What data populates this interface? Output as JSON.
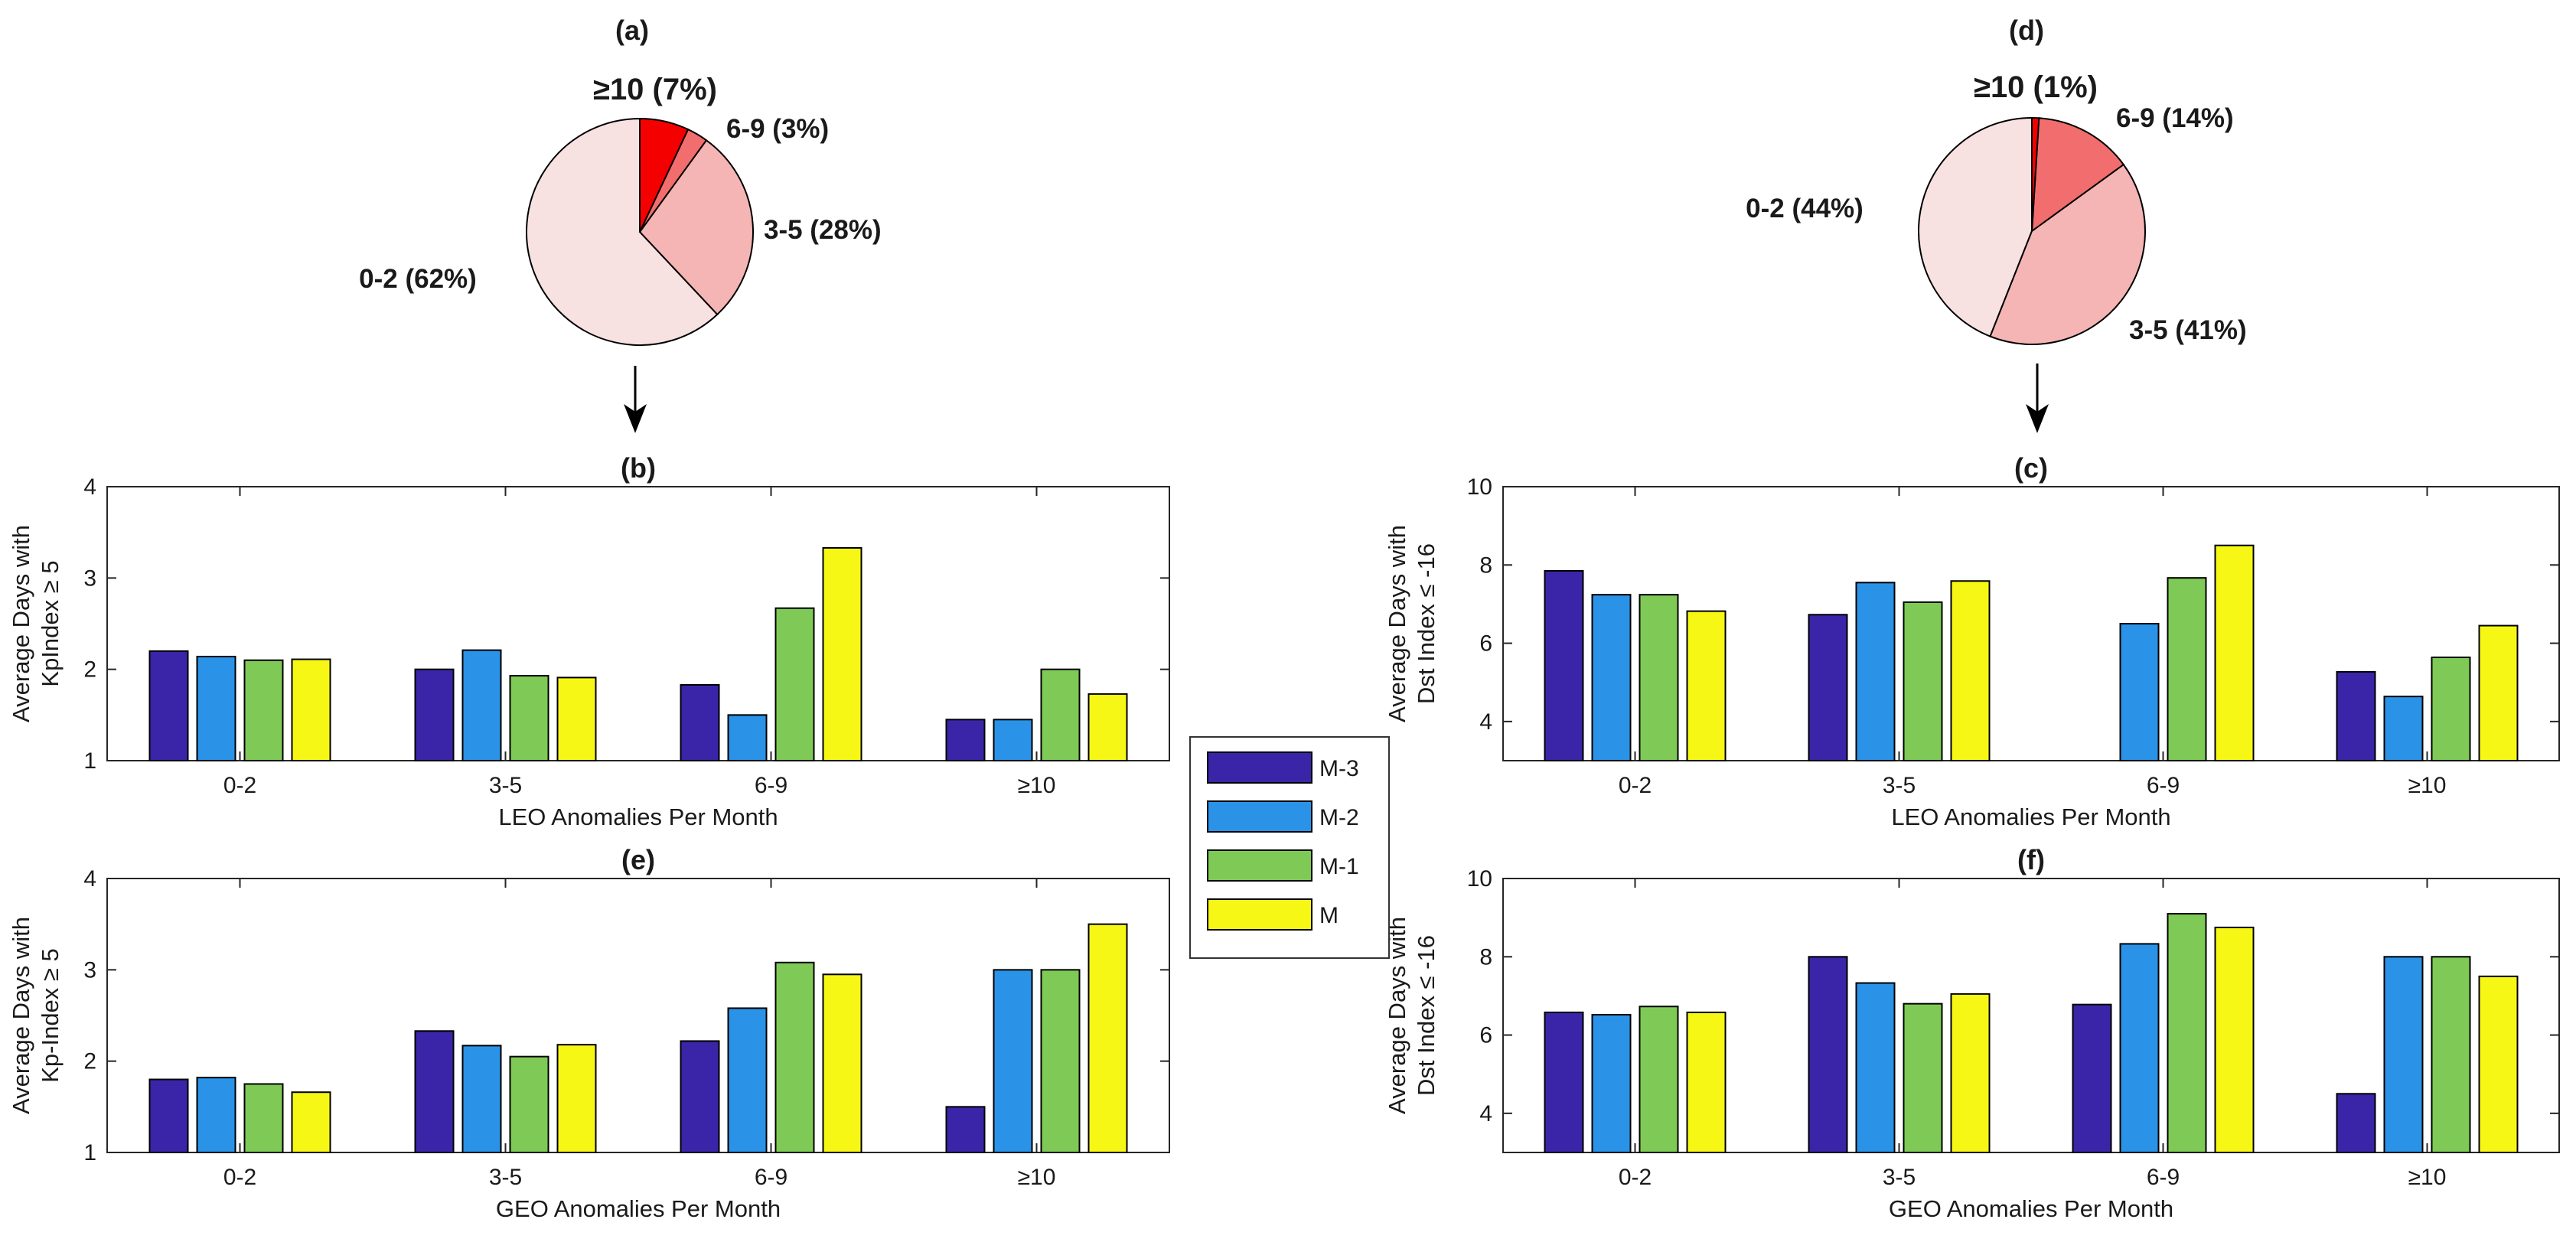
{
  "colors": {
    "M-3": "#3a25a8",
    "M-2": "#2a93e8",
    "M-1": "#7fca57",
    "M": "#f7f716",
    "pie": [
      "#f7e1e1",
      "#f5b5b5",
      "#f26d6d",
      "#f50000"
    ]
  },
  "legend": [
    "M-3",
    "M-2",
    "M-1",
    "M"
  ],
  "chart_data": [
    {
      "id": "a",
      "type": "pie",
      "title": "(a)",
      "labels": [
        "0-2 (62%)",
        "3-5 (28%)",
        "6-9 (3%)",
        "≥10 (7%)"
      ],
      "values": [
        62,
        28,
        3,
        7
      ]
    },
    {
      "id": "d",
      "type": "pie",
      "title": "(d)",
      "labels": [
        "0-2 (44%)",
        "3-5 (41%)",
        "6-9 (14%)",
        "≥10 (1%)"
      ],
      "values": [
        44,
        41,
        14,
        1
      ]
    },
    {
      "id": "b",
      "type": "bar",
      "title": "(b)",
      "categories": [
        "0-2",
        "3-5",
        "6-9",
        "≥10"
      ],
      "xlabel": "LEO Anomalies Per Month",
      "ylabel": [
        "Average Days with",
        "KpIndex ≥ 5"
      ],
      "ylim": [
        1,
        4
      ],
      "yticks": [
        1,
        2,
        3,
        4
      ],
      "series": [
        {
          "name": "M-3",
          "values": [
            2.2,
            2.0,
            1.83,
            1.45
          ]
        },
        {
          "name": "M-2",
          "values": [
            2.14,
            2.21,
            1.5,
            1.45
          ]
        },
        {
          "name": "M-1",
          "values": [
            2.1,
            1.93,
            2.67,
            2.0
          ]
        },
        {
          "name": "M",
          "values": [
            2.11,
            1.91,
            3.33,
            1.73
          ]
        }
      ]
    },
    {
      "id": "c",
      "type": "bar",
      "title": "(c)",
      "categories": [
        "0-2",
        "3-5",
        "6-9",
        "≥10"
      ],
      "xlabel": "LEO Anomalies Per Month",
      "ylabel": [
        "Average Days with",
        "Dst Index ≤ -16"
      ],
      "ylim": [
        3,
        10
      ],
      "yticks": [
        4,
        6,
        8,
        10
      ],
      "series": [
        {
          "name": "M-3",
          "values": [
            7.85,
            6.73,
            null,
            5.27
          ]
        },
        {
          "name": "M-2",
          "values": [
            7.24,
            7.55,
            6.5,
            4.64
          ]
        },
        {
          "name": "M-1",
          "values": [
            7.24,
            7.05,
            7.67,
            5.64
          ]
        },
        {
          "name": "M",
          "values": [
            6.82,
            7.59,
            8.5,
            6.45
          ]
        }
      ]
    },
    {
      "id": "e",
      "type": "bar",
      "title": "(e)",
      "categories": [
        "0-2",
        "3-5",
        "6-9",
        "≥10"
      ],
      "xlabel": "GEO Anomalies Per Month",
      "ylabel": [
        "Average Days with",
        "Kp-Index ≥ 5"
      ],
      "ylim": [
        1,
        4
      ],
      "yticks": [
        1,
        2,
        3,
        4
      ],
      "series": [
        {
          "name": "M-3",
          "values": [
            1.8,
            2.33,
            2.22,
            1.5
          ]
        },
        {
          "name": "M-2",
          "values": [
            1.82,
            2.17,
            2.58,
            3.0
          ]
        },
        {
          "name": "M-1",
          "values": [
            1.75,
            2.05,
            3.08,
            3.0
          ]
        },
        {
          "name": "M",
          "values": [
            1.66,
            2.18,
            2.95,
            3.5
          ]
        }
      ]
    },
    {
      "id": "f",
      "type": "bar",
      "title": "(f)",
      "categories": [
        "0-2",
        "3-5",
        "6-9",
        "≥10"
      ],
      "xlabel": "GEO Anomalies Per Month",
      "ylabel": [
        "Average Days with",
        "Dst Index ≤ -16"
      ],
      "ylim": [
        3,
        10
      ],
      "yticks": [
        4,
        6,
        8,
        10
      ],
      "series": [
        {
          "name": "M-3",
          "values": [
            6.58,
            8.0,
            6.78,
            4.5
          ]
        },
        {
          "name": "M-2",
          "values": [
            6.52,
            7.33,
            8.33,
            8.0
          ]
        },
        {
          "name": "M-1",
          "values": [
            6.73,
            6.8,
            9.1,
            8.0
          ]
        },
        {
          "name": "M",
          "values": [
            6.58,
            7.05,
            8.75,
            7.5
          ]
        }
      ]
    }
  ]
}
